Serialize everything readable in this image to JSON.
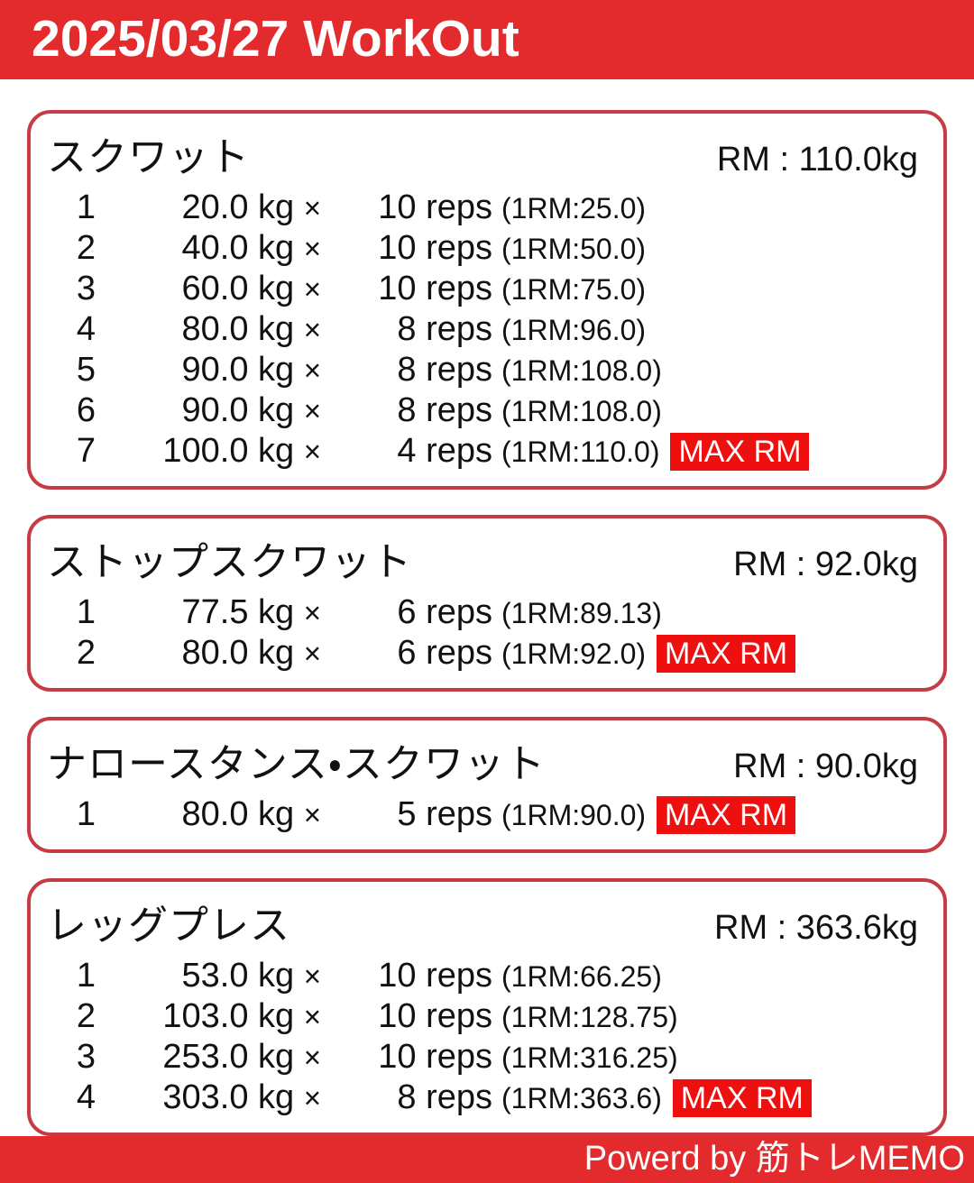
{
  "header": {
    "title": "2025/03/27 WorkOut"
  },
  "labels": {
    "kg": "kg",
    "times_sign": "×",
    "reps": "reps",
    "max_rm_badge": "MAX RM"
  },
  "exercises": [
    {
      "name": "スクワット",
      "rm_display": "RM : 110.0kg",
      "sets": [
        {
          "no": "1",
          "weight": "20.0",
          "reps": "10",
          "one_rm": "(1RM:25.0)",
          "is_max": false
        },
        {
          "no": "2",
          "weight": "40.0",
          "reps": "10",
          "one_rm": "(1RM:50.0)",
          "is_max": false
        },
        {
          "no": "3",
          "weight": "60.0",
          "reps": "10",
          "one_rm": "(1RM:75.0)",
          "is_max": false
        },
        {
          "no": "4",
          "weight": "80.0",
          "reps": "8",
          "one_rm": "(1RM:96.0)",
          "is_max": false
        },
        {
          "no": "5",
          "weight": "90.0",
          "reps": "8",
          "one_rm": "(1RM:108.0)",
          "is_max": false
        },
        {
          "no": "6",
          "weight": "90.0",
          "reps": "8",
          "one_rm": "(1RM:108.0)",
          "is_max": false
        },
        {
          "no": "7",
          "weight": "100.0",
          "reps": "4",
          "one_rm": "(1RM:110.0)",
          "is_max": true
        }
      ]
    },
    {
      "name": "ストップスクワット",
      "rm_display": "RM : 92.0kg",
      "sets": [
        {
          "no": "1",
          "weight": "77.5",
          "reps": "6",
          "one_rm": "(1RM:89.13)",
          "is_max": false
        },
        {
          "no": "2",
          "weight": "80.0",
          "reps": "6",
          "one_rm": "(1RM:92.0)",
          "is_max": true
        }
      ]
    },
    {
      "name": "ナロースタンス・スクワット",
      "rm_display": "RM : 90.0kg",
      "sets": [
        {
          "no": "1",
          "weight": "80.0",
          "reps": "5",
          "one_rm": "(1RM:90.0)",
          "is_max": true
        }
      ]
    },
    {
      "name": "レッグプレス",
      "rm_display": "RM : 363.6kg",
      "sets": [
        {
          "no": "1",
          "weight": "53.0",
          "reps": "10",
          "one_rm": "(1RM:66.25)",
          "is_max": false
        },
        {
          "no": "2",
          "weight": "103.0",
          "reps": "10",
          "one_rm": "(1RM:128.75)",
          "is_max": false
        },
        {
          "no": "3",
          "weight": "253.0",
          "reps": "10",
          "one_rm": "(1RM:316.25)",
          "is_max": false
        },
        {
          "no": "4",
          "weight": "303.0",
          "reps": "8",
          "one_rm": "(1RM:363.6)",
          "is_max": true
        }
      ]
    }
  ],
  "footer": {
    "credit": "Powerd by 筋トレMEMO"
  },
  "colors": {
    "primary_red": "#E32B2D",
    "card_border_red": "#C63C44",
    "badge_red": "#EE0F0F"
  }
}
